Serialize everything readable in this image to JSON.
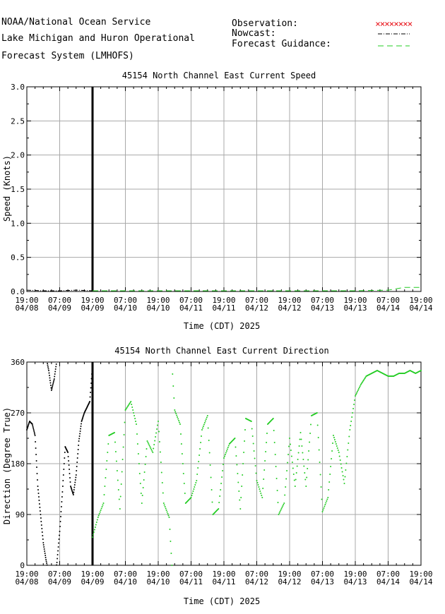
{
  "header": {
    "line1": "NOAA/National Ocean Service",
    "line2": "Lake Michigan and Huron Operational",
    "line3": "Forecast System (LMHOFS)"
  },
  "legend": {
    "observation": "Observation:",
    "nowcast": "Nowcast:",
    "forecast": "Forecast Guidance:",
    "colors": {
      "observation": "#e8141b",
      "nowcast": "#000000",
      "forecast": "#22cc22"
    }
  },
  "time_axis": {
    "ticks": [
      [
        "19:00",
        "04/08"
      ],
      [
        "07:00",
        "04/09"
      ],
      [
        "19:00",
        "04/09"
      ],
      [
        "07:00",
        "04/10"
      ],
      [
        "19:00",
        "04/10"
      ],
      [
        "07:00",
        "04/11"
      ],
      [
        "19:00",
        "04/11"
      ],
      [
        "07:00",
        "04/12"
      ],
      [
        "19:00",
        "04/12"
      ],
      [
        "07:00",
        "04/13"
      ],
      [
        "19:00",
        "04/13"
      ],
      [
        "07:00",
        "04/14"
      ],
      [
        "19:00",
        "04/14"
      ]
    ],
    "label": "Time (CDT) 2025"
  },
  "chart_data": [
    {
      "type": "line",
      "title": "45154    North Channel East Current Speed",
      "xlabel": "Time (CDT) 2025",
      "ylabel": "Speed (Knots)",
      "ylim": [
        0,
        3.0
      ],
      "yticks": [
        "0.0",
        "0.5",
        "1.0",
        "1.5",
        "2.0",
        "2.5",
        "3.0"
      ],
      "grid": true,
      "nowcast_end": "04/09 19:00",
      "series": [
        {
          "name": "Nowcast",
          "x": [
            "04/08 19:00",
            "04/09 01:00",
            "04/09 07:00",
            "04/09 13:00",
            "04/09 19:00"
          ],
          "values": [
            0.02,
            0.01,
            0.01,
            0.02,
            0.01
          ]
        },
        {
          "name": "Forecast Guidance",
          "x": [
            "04/09 19:00",
            "04/10 07:00",
            "04/10 19:00",
            "04/11 07:00",
            "04/11 19:00",
            "04/12 07:00",
            "04/12 19:00",
            "04/13 07:00",
            "04/13 19:00",
            "04/14 07:00",
            "04/14 13:00",
            "04/14 19:00"
          ],
          "values": [
            0.01,
            0.01,
            0.01,
            0.01,
            0.01,
            0.01,
            0.01,
            0.01,
            0.01,
            0.02,
            0.06,
            0.06
          ]
        }
      ]
    },
    {
      "type": "scatter",
      "title": "45154    North Channel East Current Direction",
      "xlabel": "Time (CDT) 2025",
      "ylabel": "Direction (Degree True)",
      "ylim": [
        0,
        360
      ],
      "yticks": [
        "0",
        "90",
        "180",
        "270",
        "360"
      ],
      "grid": true,
      "series": [
        {
          "name": "Nowcast",
          "x_hours": [
            0,
            1,
            2,
            3,
            4,
            5,
            6,
            7,
            8,
            9,
            10,
            11,
            12,
            13,
            14,
            15,
            16,
            17,
            18,
            19,
            20,
            21,
            22,
            23,
            24
          ],
          "values": [
            240,
            255,
            250,
            230,
            140,
            90,
            40,
            10,
            345,
            310,
            330,
            5,
            60,
            130,
            210,
            200,
            140,
            125,
            160,
            220,
            255,
            270,
            280,
            290,
            355
          ]
        },
        {
          "name": "Forecast Guidance",
          "x_hours": [
            24,
            26,
            28,
            30,
            32,
            34,
            36,
            38,
            40,
            42,
            44,
            46,
            48,
            50,
            52,
            54,
            56,
            58,
            60,
            62,
            64,
            66,
            68,
            70,
            72,
            74,
            76,
            78,
            80,
            82,
            84,
            86,
            88,
            90,
            92,
            94,
            96,
            98,
            100,
            102,
            104,
            106,
            108,
            110,
            112,
            114,
            116,
            118,
            120,
            122,
            124,
            126,
            128,
            130,
            132,
            134,
            136,
            138,
            140,
            142,
            144
          ],
          "values": [
            50,
            85,
            110,
            230,
            235,
            100,
            275,
            290,
            250,
            110,
            220,
            200,
            255,
            110,
            85,
            275,
            250,
            110,
            120,
            150,
            240,
            265,
            90,
            100,
            190,
            215,
            225,
            100,
            260,
            255,
            150,
            120,
            250,
            260,
            90,
            110,
            225,
            140,
            235,
            140,
            265,
            270,
            95,
            120,
            230,
            200,
            145,
            240,
            300,
            320,
            335,
            340,
            345,
            340,
            335,
            335,
            340,
            340,
            345,
            340,
            345
          ]
        }
      ]
    }
  ]
}
